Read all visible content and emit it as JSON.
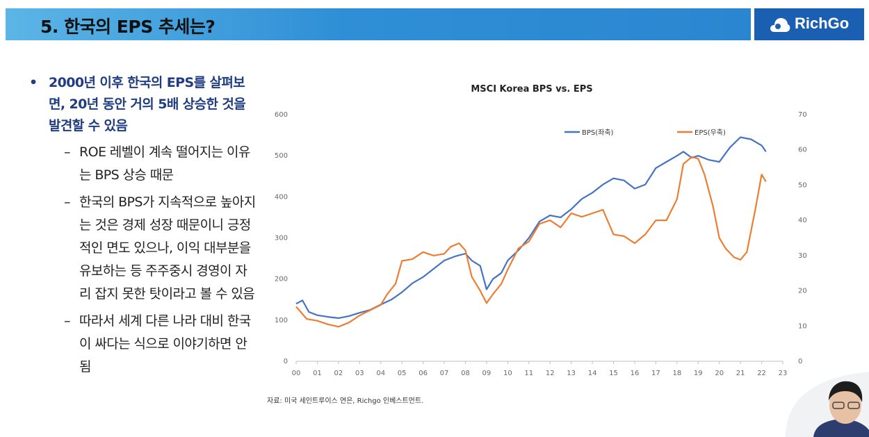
{
  "header": {
    "title": "5. 한국의 EPS 추세는?",
    "logo_text": "RichGo"
  },
  "content": {
    "main_bullet": "2000년 이후 한국의 EPS를 살펴보면, 20년 동안 거의 5배 상승한 것을 발견할 수 있음",
    "sub_points": [
      "ROE 레벨이 계속 떨어지는 이유는 BPS 상승 때문",
      "한국의 BPS가 지속적으로 높아지는 것은 경제 성장 때문이니 긍정적인 면도 있으나, 이익 대부분을 유보하는 등 주주중시 경영이 자리 잡지 못한 탓이라고 볼 수 있음",
      "따라서 세계 다른 나라 대비 한국이 싸다는 식으로 이야기하면 안됨"
    ]
  },
  "chart_data": {
    "type": "line",
    "title": "MSCI Korea BPS vs. EPS",
    "x_ticks": [
      "00",
      "01",
      "02",
      "03",
      "04",
      "05",
      "06",
      "07",
      "08",
      "09",
      "10",
      "11",
      "12",
      "13",
      "14",
      "15",
      "16",
      "17",
      "18",
      "19",
      "20",
      "21",
      "22",
      "23"
    ],
    "xlim": [
      0,
      23
    ],
    "y_left": {
      "lim": [
        0,
        600
      ],
      "ticks": [
        "0",
        "100",
        "200",
        "300",
        "400",
        "500",
        "600"
      ]
    },
    "y_right": {
      "lim": [
        0,
        70
      ],
      "ticks": [
        "0",
        "10",
        "20",
        "30",
        "40",
        "50",
        "60",
        "70"
      ]
    },
    "legend_position": "top-right",
    "grid": false,
    "series": [
      {
        "name": "BPS(좌축)",
        "axis": "left",
        "color": "#4472c4",
        "x": [
          0,
          0.3,
          0.6,
          1,
          1.5,
          2,
          2.5,
          3,
          3.5,
          4,
          4.5,
          5,
          5.5,
          6,
          6.5,
          7,
          7.5,
          8,
          8.3,
          8.7,
          9,
          9.3,
          9.7,
          10,
          10.5,
          11,
          11.5,
          12,
          12.5,
          13,
          13.5,
          14,
          14.5,
          15,
          15.5,
          16,
          16.5,
          17,
          17.5,
          18,
          18.3,
          18.7,
          19,
          19.5,
          20,
          20.5,
          21,
          21.5,
          22,
          22.2
        ],
        "y": [
          140,
          148,
          120,
          112,
          108,
          105,
          110,
          118,
          125,
          138,
          150,
          168,
          190,
          205,
          225,
          245,
          255,
          262,
          245,
          232,
          175,
          200,
          215,
          245,
          270,
          300,
          340,
          355,
          350,
          370,
          395,
          410,
          430,
          445,
          440,
          420,
          430,
          470,
          485,
          500,
          510,
          495,
          500,
          490,
          485,
          520,
          545,
          540,
          525,
          510
        ]
      },
      {
        "name": "EPS(우축)",
        "axis": "right",
        "color": "#ed7d31",
        "x": [
          0,
          0.5,
          1,
          1.5,
          2,
          2.5,
          3,
          3.5,
          4,
          4.3,
          4.7,
          5,
          5.5,
          6,
          6.5,
          7,
          7.3,
          7.7,
          8,
          8.3,
          8.7,
          9,
          9.3,
          9.7,
          10,
          10.5,
          11,
          11.5,
          12,
          12.5,
          13,
          13.5,
          14,
          14.5,
          15,
          15.5,
          16,
          16.5,
          17,
          17.5,
          18,
          18.3,
          18.7,
          19,
          19.3,
          19.7,
          20,
          20.3,
          20.7,
          21,
          21.3,
          21.7,
          22,
          22.2
        ],
        "y": [
          15.5,
          12.0,
          11.5,
          10.5,
          9.8,
          11.0,
          13.0,
          14.5,
          16.0,
          19.0,
          22.0,
          28.5,
          29.0,
          31.0,
          30.0,
          30.5,
          32.5,
          33.5,
          31.5,
          24.0,
          20.0,
          16.5,
          19.0,
          22.0,
          26.0,
          32.0,
          34.0,
          39.0,
          40.0,
          38.0,
          42.0,
          41.0,
          42.0,
          43.0,
          36.0,
          35.5,
          33.5,
          36.0,
          40.0,
          40.0,
          46.0,
          56.0,
          58.0,
          57.5,
          53.0,
          44.0,
          35.0,
          32.0,
          29.5,
          28.8,
          31.0,
          43.0,
          53.0,
          51.0
        ]
      }
    ]
  },
  "source": {
    "text": "자료: 미국 세인트루이스 연은, Richgo 인베스트먼트."
  }
}
